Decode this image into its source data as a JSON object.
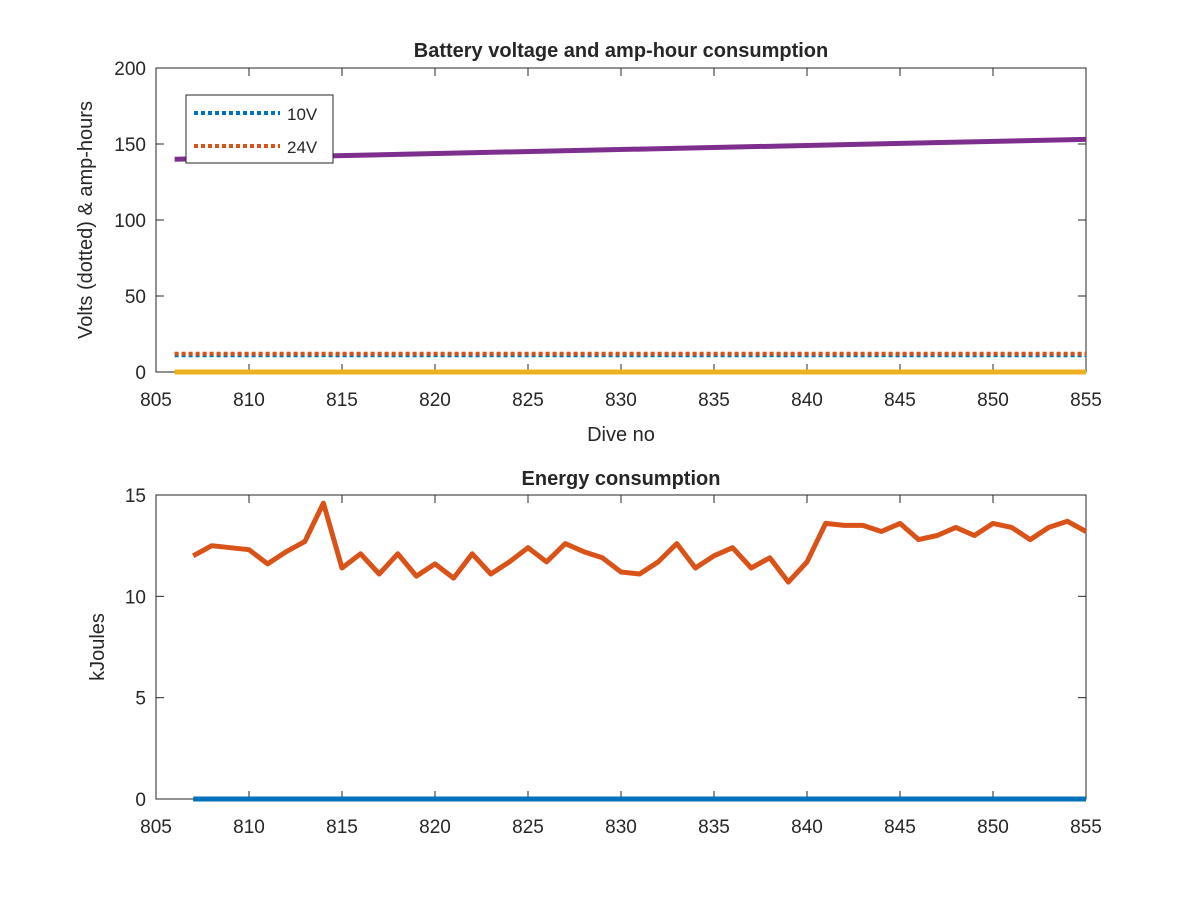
{
  "chart_data": [
    {
      "type": "line",
      "title": "Battery voltage and amp-hour consumption",
      "xlabel": "Dive no",
      "ylabel": "Volts (dotted) & amp-hours",
      "xlim": [
        805,
        855
      ],
      "ylim": [
        0,
        200
      ],
      "xticks": [
        805,
        810,
        815,
        820,
        825,
        830,
        835,
        840,
        845,
        850,
        855
      ],
      "yticks": [
        0,
        50,
        100,
        150,
        200
      ],
      "grid": false,
      "legend_position": "top-left",
      "x": [
        806,
        855
      ],
      "series": [
        {
          "name": "10V",
          "style": "dotted",
          "color": "#0072BD",
          "values": [
            11,
            11
          ]
        },
        {
          "name": "24V",
          "style": "dotted",
          "color": "#D95319",
          "values": [
            12,
            12
          ]
        },
        {
          "style": "solid",
          "color": "#EDB120",
          "values": [
            0,
            0
          ]
        },
        {
          "style": "solid",
          "color": "#7E2F8E",
          "values": [
            140,
            153
          ]
        }
      ]
    },
    {
      "type": "line",
      "title": "Energy consumption",
      "xlabel": "",
      "ylabel": "kJoules",
      "xlim": [
        805,
        855
      ],
      "ylim": [
        0,
        15
      ],
      "xticks": [
        805,
        810,
        815,
        820,
        825,
        830,
        835,
        840,
        845,
        850,
        855
      ],
      "yticks": [
        0,
        5,
        10,
        15
      ],
      "grid": false,
      "x": [
        807,
        808,
        809,
        810,
        811,
        812,
        813,
        814,
        815,
        816,
        817,
        818,
        819,
        820,
        821,
        822,
        823,
        824,
        825,
        826,
        827,
        828,
        829,
        830,
        831,
        832,
        833,
        834,
        835,
        836,
        837,
        838,
        839,
        840,
        841,
        842,
        843,
        844,
        845,
        846,
        847,
        848,
        849,
        850,
        851,
        852,
        853,
        854,
        855
      ],
      "series": [
        {
          "style": "solid",
          "color": "#0072BD",
          "values": [
            0,
            0,
            0,
            0,
            0,
            0,
            0,
            0,
            0,
            0,
            0,
            0,
            0,
            0,
            0,
            0,
            0,
            0,
            0,
            0,
            0,
            0,
            0,
            0,
            0,
            0,
            0,
            0,
            0,
            0,
            0,
            0,
            0,
            0,
            0,
            0,
            0,
            0,
            0,
            0,
            0,
            0,
            0,
            0,
            0,
            0,
            0,
            0,
            0
          ]
        },
        {
          "style": "solid",
          "color": "#D95319",
          "values": [
            12.0,
            12.5,
            12.4,
            12.3,
            11.6,
            12.2,
            12.7,
            14.6,
            11.4,
            12.1,
            11.1,
            12.1,
            11.0,
            11.6,
            10.9,
            12.1,
            11.1,
            11.7,
            12.4,
            11.7,
            12.6,
            12.2,
            11.9,
            11.2,
            11.1,
            11.7,
            12.6,
            11.4,
            12.0,
            12.4,
            11.4,
            11.9,
            10.7,
            11.7,
            13.6,
            13.5,
            13.5,
            13.2,
            13.6,
            12.8,
            13.0,
            13.4,
            13.0,
            13.6,
            13.4,
            12.8,
            13.4,
            13.7,
            13.2
          ]
        }
      ]
    }
  ]
}
